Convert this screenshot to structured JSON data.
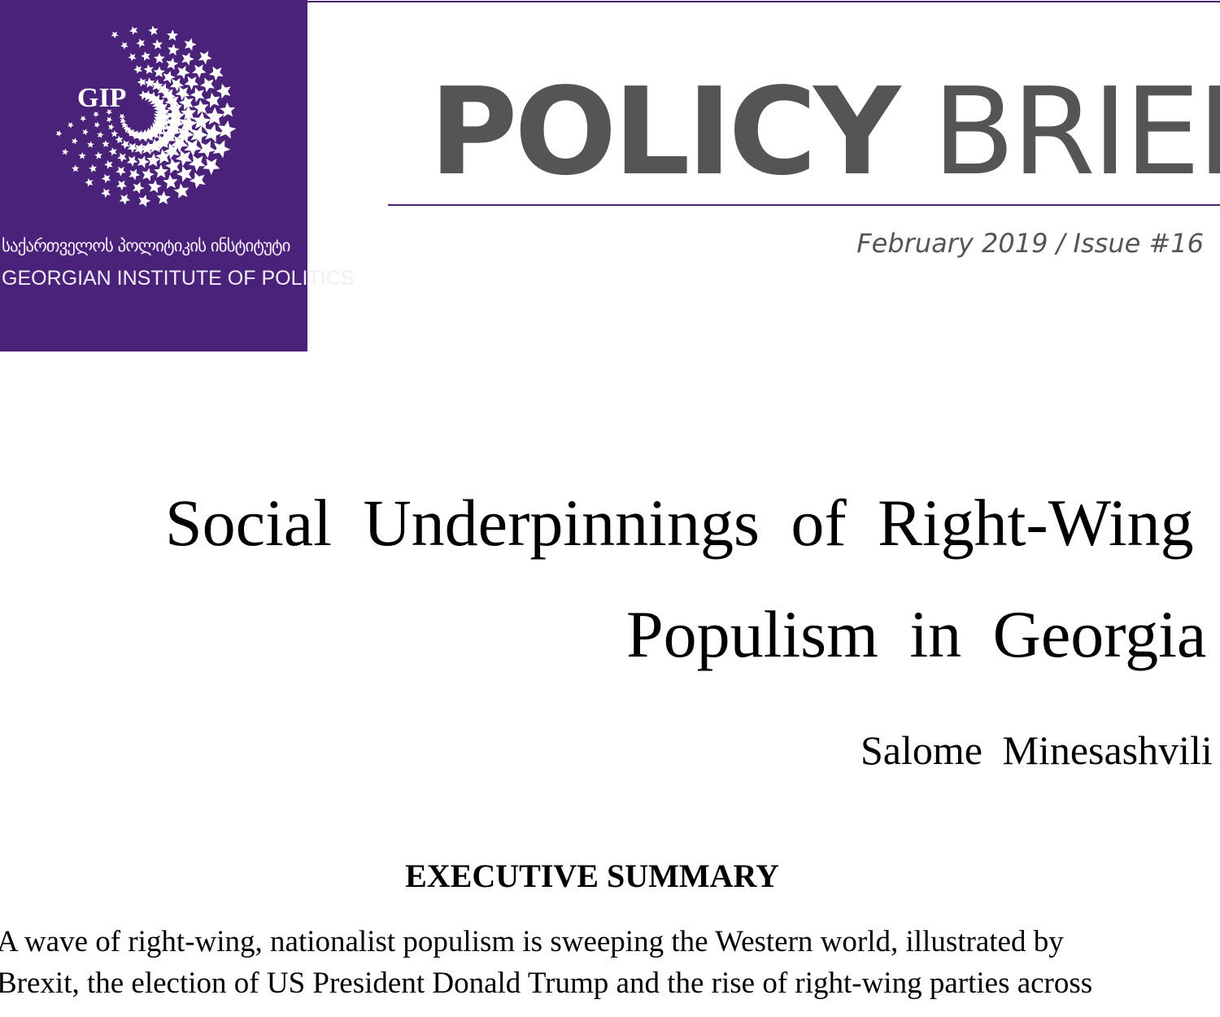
{
  "header": {
    "org_logo_text": "GIP",
    "org_name_georgian": "საქართველოს პოლიტიკის ინსტიტუტი",
    "org_name_english": "GEORGIAN INSTITUTE OF POLITICS",
    "series_title_bold": "POLICY",
    "series_title_light": "BRIEF",
    "issue_line": "February 2019 / Issue #16",
    "brand_color": "#4b2279"
  },
  "document": {
    "title_line1": "Social Underpinnings of Right-Wing",
    "title_line2": "Populism in Georgia",
    "author": "Salome Minesashvili",
    "section_heading": "EXECUTIVE SUMMARY",
    "body_lines": [
      "A wave of right-wing, nationalist populism is sweeping the Western world, illustrated by",
      "Brexit, the election of US President Donald Trump and the rise of right-wing parties across"
    ]
  }
}
